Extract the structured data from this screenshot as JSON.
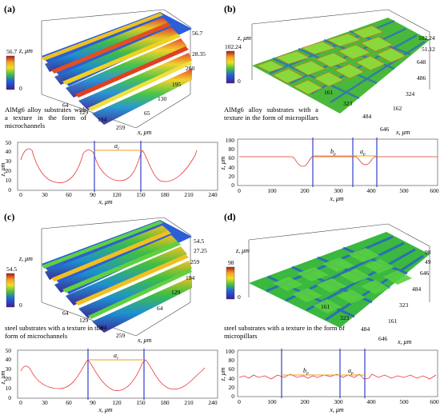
{
  "panels": {
    "a": {
      "label": "(a)",
      "caption": "AlMg6 alloy substrates with a texture in the form of microchannels",
      "surface": {
        "type": "channels",
        "colorbar_max": "56.7",
        "z_axis": {
          "label": "z, μm",
          "ticks": [
            "56.7",
            "28.35",
            "0"
          ]
        },
        "x_axis": {
          "label": "x, μm",
          "ticks": [
            "64",
            "129",
            "194",
            "259"
          ]
        },
        "y_ticks": [
          "260",
          "195",
          "130",
          "65"
        ]
      },
      "profile": {
        "xlabel": "x, μm",
        "ylabel": "z, μm",
        "xticks": [
          "0",
          "30",
          "60",
          "90",
          "120",
          "150",
          "180",
          "210",
          "240"
        ],
        "yticks": [
          "0",
          "10",
          "20",
          "30",
          "40",
          "50"
        ],
        "annotation": "a",
        "annotation_sub": "c"
      }
    },
    "b": {
      "label": "(b)",
      "caption": "AlMg6 alloy substrates with a texture in the form of micropillars",
      "surface": {
        "type": "pillars",
        "colorbar_max": "102.24",
        "z_axis": {
          "label": "z, μm",
          "ticks": [
            "102.24",
            "51.12",
            "0"
          ]
        },
        "x_axis": {
          "label": "x, μm",
          "ticks": [
            "161",
            "323",
            "484",
            "646"
          ]
        },
        "y_ticks": [
          "648",
          "486",
          "324",
          "162"
        ]
      },
      "profile": {
        "xlabel": "x, μm",
        "ylabel": "z, μm",
        "xticks": [
          "0",
          "100",
          "200",
          "300",
          "400",
          "500",
          "600"
        ],
        "yticks": [
          "0",
          "20",
          "40",
          "60",
          "80",
          "100"
        ],
        "annotation1": "b",
        "annotation1_sub": "p",
        "annotation2": "a",
        "annotation2_sub": "p"
      }
    },
    "c": {
      "label": "(c)",
      "caption": "steel substrates with a texture in the form of microchannels",
      "surface": {
        "type": "channels",
        "colorbar_max": "54.5",
        "z_axis": {
          "label": "z, μm",
          "ticks": [
            "54.5",
            "27.25",
            "0"
          ]
        },
        "x_axis": {
          "label": "x, μm",
          "ticks": [
            "64",
            "129",
            "194",
            "259"
          ]
        },
        "y_ticks": [
          "259",
          "194",
          "129",
          "64"
        ]
      },
      "profile": {
        "xlabel": "x, μm",
        "ylabel": "z, μm",
        "xticks": [
          "0",
          "30",
          "60",
          "90",
          "120",
          "150",
          "180",
          "210",
          "240"
        ],
        "yticks": [
          "0",
          "10",
          "20",
          "30",
          "40",
          "50"
        ],
        "annotation": "a",
        "annotation_sub": "c"
      }
    },
    "d": {
      "label": "(d)",
      "caption": "steel substrates with a texture in the form of micropillars",
      "surface": {
        "type": "pillars",
        "colorbar_max": "98",
        "z_axis": {
          "label": "z, μm",
          "ticks": [
            "98",
            "49",
            "0"
          ]
        },
        "x_axis": {
          "label": "x, μm",
          "ticks": [
            "161",
            "323",
            "484",
            "646"
          ]
        },
        "y_ticks": [
          "646",
          "484",
          "323",
          "161"
        ]
      },
      "profile": {
        "xlabel": "x, μm",
        "ylabel": "z, μm",
        "xticks": [
          "0",
          "100",
          "200",
          "300",
          "400",
          "500",
          "600"
        ],
        "yticks": [
          "0",
          "20",
          "40",
          "60",
          "80",
          "100"
        ],
        "annotation1": "b",
        "annotation1_sub": "p",
        "annotation2": "a",
        "annotation2_sub": "p"
      }
    }
  },
  "colors": {
    "profile_line": "#e53935",
    "bracket_line": "#3340c8",
    "span_line": "#e8a317"
  }
}
